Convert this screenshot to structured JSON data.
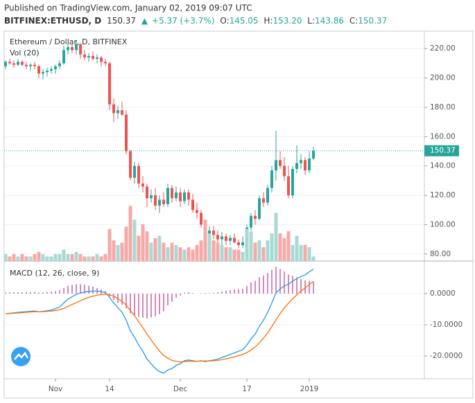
{
  "header": {
    "published": "Published on TradingView.com, January 02, 2019 09:07 UTC",
    "symbol": "BITFINEX:ETHUSD, D",
    "last": "150.37",
    "arrow": "▲",
    "change": "+5.37 (+3.7%)",
    "ohlc": [
      {
        "label": "O:",
        "value": "145.05"
      },
      {
        "label": "H:",
        "value": "153.20"
      },
      {
        "label": "L:",
        "value": "143.86"
      },
      {
        "label": "C:",
        "value": "150.37"
      }
    ]
  },
  "chart_data": [
    {
      "type": "candlestick",
      "title": "Ethereum / Dollar, D, BITFINEX",
      "up_color": "#26a69a",
      "down_color": "#ef5350",
      "categories": [
        null,
        null,
        null,
        null,
        null,
        null,
        null,
        null,
        null,
        null,
        null,
        null,
        "Nov",
        null,
        null,
        null,
        null,
        null,
        null,
        null,
        null,
        null,
        null,
        null,
        null,
        "14",
        null,
        null,
        null,
        null,
        null,
        null,
        null,
        null,
        null,
        null,
        null,
        null,
        null,
        null,
        null,
        null,
        "Dec",
        null,
        null,
        null,
        null,
        null,
        null,
        null,
        null,
        null,
        null,
        null,
        null,
        null,
        null,
        null,
        "17",
        null,
        null,
        null,
        null,
        null,
        null,
        null,
        null,
        null,
        null,
        null,
        null,
        null,
        null,
        "2019",
        null
      ],
      "open": [
        208,
        211,
        210,
        209,
        211,
        209,
        208,
        209,
        208,
        203,
        204,
        205,
        206,
        208,
        210,
        219,
        221,
        219,
        223,
        216,
        214,
        215,
        213,
        214,
        211,
        210,
        182,
        176,
        178,
        175,
        150,
        132,
        140,
        128,
        126,
        118,
        120,
        113,
        117,
        114,
        125,
        118,
        122,
        116,
        122,
        117,
        110,
        108,
        100,
        92,
        96,
        93,
        90,
        92,
        89,
        91,
        88,
        86,
        88,
        98,
        106,
        104,
        118,
        115,
        125,
        137,
        144,
        140,
        133,
        120,
        138,
        142,
        144,
        137,
        145.05
      ],
      "high": [
        212,
        213,
        212,
        213,
        212,
        211,
        210,
        211,
        209,
        206,
        207,
        208,
        209,
        212,
        222,
        224,
        223,
        226,
        224,
        219,
        217,
        218,
        216,
        215,
        213,
        211,
        186,
        181,
        184,
        178,
        151,
        143,
        142,
        133,
        128,
        124,
        125,
        120,
        122,
        128,
        127,
        126,
        125,
        124,
        124,
        121,
        115,
        110,
        103,
        99,
        99,
        96,
        95,
        94,
        93,
        94,
        90,
        92,
        100,
        108,
        110,
        120,
        122,
        127,
        140,
        164,
        150,
        146,
        140,
        140,
        154,
        148,
        146,
        150,
        153.2
      ],
      "low": [
        206,
        209,
        207,
        208,
        208,
        206,
        205,
        206,
        200,
        199,
        201,
        203,
        203,
        206,
        209,
        216,
        217,
        216,
        213,
        212,
        211,
        212,
        210,
        208,
        208,
        178,
        170,
        172,
        174,
        148,
        130,
        128,
        125,
        122,
        112,
        115,
        110,
        108,
        112,
        112,
        115,
        116,
        112,
        114,
        113,
        108,
        104,
        98,
        89,
        88,
        90,
        86,
        84,
        86,
        86,
        87,
        84,
        84,
        86,
        96,
        100,
        103,
        112,
        113,
        122,
        130,
        138,
        130,
        118,
        118,
        135,
        138,
        134,
        135,
        143.86
      ],
      "close": [
        211,
        210,
        209,
        211,
        209,
        208,
        209,
        208,
        203,
        204,
        205,
        206,
        208,
        210,
        219,
        221,
        219,
        223,
        216,
        214,
        215,
        213,
        214,
        211,
        210,
        182,
        176,
        178,
        175,
        150,
        132,
        140,
        128,
        126,
        118,
        120,
        113,
        117,
        114,
        125,
        118,
        122,
        116,
        122,
        117,
        110,
        108,
        100,
        92,
        96,
        93,
        90,
        92,
        89,
        91,
        88,
        86,
        88,
        98,
        106,
        104,
        118,
        115,
        125,
        137,
        144,
        140,
        133,
        120,
        138,
        142,
        144,
        137,
        145,
        150.37
      ],
      "ylim": [
        75.2,
        231.9
      ],
      "yticks": [
        {
          "value": 80,
          "label": "80.00"
        },
        {
          "value": 100,
          "label": "100.00"
        },
        {
          "value": 120,
          "label": "120.00"
        },
        {
          "value": 140,
          "label": "140.00"
        },
        {
          "value": 160,
          "label": "160.00"
        },
        {
          "value": 180,
          "label": "180.00"
        },
        {
          "value": 200,
          "label": "200.00"
        },
        {
          "value": 220,
          "label": "220.00"
        }
      ],
      "grid": true,
      "price_line": {
        "value": 150.37,
        "label": "150.37",
        "color": "#26a69a"
      }
    },
    {
      "type": "bar",
      "title": "Vol (20)",
      "up_color": "#a8dad5",
      "down_color": "#f7a9a7",
      "values": [
        3,
        2,
        3,
        2,
        3,
        2,
        2,
        3,
        4,
        3,
        2,
        2,
        3,
        3,
        5,
        3,
        3,
        4,
        3,
        2,
        2,
        2,
        3,
        2,
        3,
        14,
        9,
        7,
        8,
        15,
        24,
        18,
        11,
        16,
        13,
        8,
        10,
        11,
        8,
        6,
        8,
        7,
        6,
        5,
        6,
        5,
        7,
        9,
        18,
        12,
        9,
        8,
        7,
        6,
        6,
        5,
        5,
        4,
        14,
        13,
        8,
        9,
        6,
        9,
        12,
        21,
        12,
        10,
        13,
        7,
        11,
        7,
        7,
        6,
        2
      ],
      "ylim": [
        0,
        100
      ]
    },
    {
      "type": "macd",
      "title": "MACD (12, 26, close, 9)",
      "series": [
        {
          "color": "#2196f3",
          "values": [
            -6.5,
            -6.3,
            -6.2,
            -6,
            -5.9,
            -5.8,
            -5.7,
            -5.6,
            -5.8,
            -5.7,
            -5.5,
            -5.3,
            -4.8,
            -4.3,
            -3,
            -1.8,
            -1,
            -0.3,
            0.2,
            0.5,
            0.7,
            0.8,
            0.8,
            0.6,
            0.3,
            -1.2,
            -3,
            -4.5,
            -6,
            -8.5,
            -12,
            -14,
            -16.5,
            -18.5,
            -21,
            -22.5,
            -24,
            -25,
            -25.5,
            -24.5,
            -24,
            -23,
            -22.5,
            -21.5,
            -21.3,
            -21.5,
            -21.7,
            -21.5,
            -21.8,
            -21.5,
            -21.3,
            -21,
            -20.5,
            -20,
            -19.5,
            -19,
            -18.5,
            -18,
            -16.5,
            -14.5,
            -13,
            -10.5,
            -8.5,
            -6,
            -3,
            0.2,
            1.5,
            2.5,
            3,
            4,
            4.8,
            5.5,
            6,
            7,
            7.8
          ]
        },
        {
          "color": "#ff6d00",
          "values": [
            -6.5,
            -6.4,
            -6.3,
            -6.2,
            -6.1,
            -6,
            -5.9,
            -5.8,
            -5.8,
            -5.8,
            -5.7,
            -5.6,
            -5.4,
            -5.2,
            -4.7,
            -4.1,
            -3.5,
            -2.9,
            -2.3,
            -1.7,
            -1.2,
            -0.8,
            -0.5,
            -0.3,
            -0.2,
            -0.4,
            -0.9,
            -1.6,
            -2.5,
            -3.7,
            -5.4,
            -7.1,
            -9,
            -10.9,
            -13,
            -14.9,
            -16.7,
            -18.4,
            -19.8,
            -20.7,
            -21.4,
            -21.7,
            -21.9,
            -21.8,
            -21.7,
            -21.7,
            -21.7,
            -21.6,
            -21.6,
            -21.6,
            -21.5,
            -21.4,
            -21.2,
            -20.9,
            -20.6,
            -20.3,
            -19.9,
            -19.5,
            -18.9,
            -18.1,
            -17.1,
            -15.8,
            -14.3,
            -12.6,
            -10.6,
            -8.4,
            -6.4,
            -4.6,
            -3.1,
            -1.7,
            -0.4,
            0.8,
            1.8,
            2.9,
            3.9
          ]
        }
      ],
      "histogram": {
        "color": "#a5147a",
        "values": [
          0.3,
          0.4,
          0.4,
          0.5,
          0.5,
          0.5,
          0.5,
          0.5,
          0.3,
          0.4,
          0.5,
          0.6,
          0.8,
          1.1,
          1.8,
          2.5,
          2.8,
          3,
          3,
          2.8,
          2.5,
          2.2,
          1.8,
          1.3,
          0.8,
          -0.8,
          -2,
          -3,
          -3.6,
          -4.8,
          -6.3,
          -6.9,
          -7.5,
          -7.7,
          -8,
          -7.6,
          -7.3,
          -6.6,
          -5.7,
          -3.8,
          -2.6,
          -1.3,
          -0.6,
          0.3,
          0.4,
          0.2,
          0,
          0.1,
          -0.2,
          0.1,
          0.2,
          0.4,
          0.7,
          0.9,
          1.1,
          1.3,
          1.4,
          1.5,
          2.4,
          3.6,
          4.1,
          5.3,
          5.8,
          6.6,
          7.6,
          8.6,
          7.9,
          7.1,
          6.1,
          5.7,
          5.2,
          4.7,
          4.2,
          4.1,
          3.9
        ]
      },
      "ylim": [
        -27.3,
        10.2
      ],
      "yticks": [
        {
          "value": -20,
          "label": "-20.0000"
        },
        {
          "value": -10,
          "label": "-10.0000"
        },
        {
          "value": 0,
          "label": "0.0000"
        }
      ],
      "grid": true
    }
  ]
}
